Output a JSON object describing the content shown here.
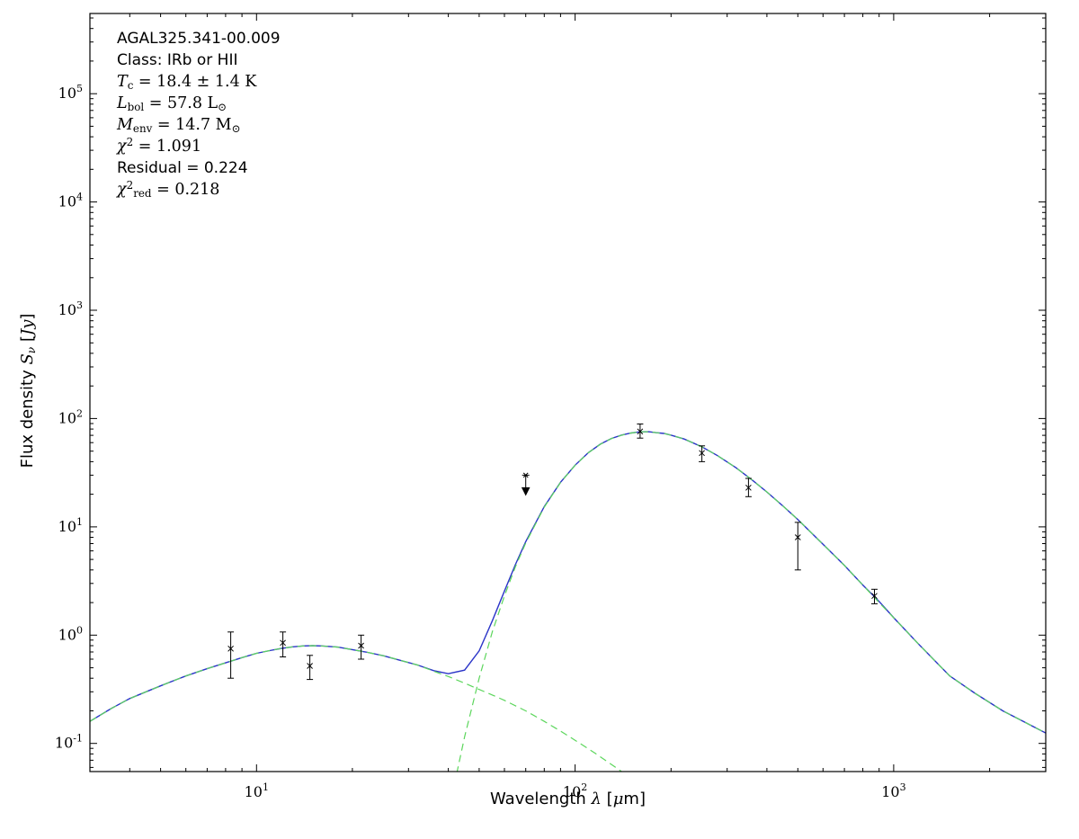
{
  "annotation": {
    "lines": [
      {
        "style": "plain",
        "text": "AGAL325.341-00.009"
      },
      {
        "style": "plain",
        "text": "Class: IRb or HII"
      },
      {
        "style": "math",
        "text": "T_{c} = 18.4 ± 1.4 K"
      },
      {
        "style": "math",
        "text": "L_{bol} = 57.8 L_{⊙}"
      },
      {
        "style": "math",
        "text": "M_{env} = 14.7 M_{⊙}"
      },
      {
        "style": "math",
        "text": "χ^{2} = 1.091"
      },
      {
        "style": "plain",
        "text": "Residual = 0.224"
      },
      {
        "style": "math",
        "text": "χ^{2}_{red} = 0.218"
      }
    ]
  },
  "chart_data": {
    "type": "line",
    "xlabel": "Wavelength *λ* [*μ*m]",
    "ylabel": "Flux density *S*_{*ν*} [*Jy*]",
    "xscale": "log",
    "yscale": "log",
    "xlim": [
      3,
      3000
    ],
    "ylim": [
      0.055,
      550000
    ],
    "grid": false,
    "x_ticks": [
      {
        "value": 10,
        "label": "10^{1}"
      },
      {
        "value": 100,
        "label": "10^{2}"
      },
      {
        "value": 1000,
        "label": "10^{3}"
      }
    ],
    "y_ticks": [
      {
        "value": 0.1,
        "label": "10^{-1}"
      },
      {
        "value": 1,
        "label": "10^{0}"
      },
      {
        "value": 10,
        "label": "10^{1}"
      },
      {
        "value": 100,
        "label": "10^{2}"
      },
      {
        "value": 1000,
        "label": "10^{3}"
      },
      {
        "value": 10000,
        "label": "10^{4}"
      },
      {
        "value": 100000,
        "label": "10^{5}"
      }
    ],
    "colors": {
      "total": "#2b35c8",
      "component": "#5cd65c",
      "data": "#000000"
    },
    "series": [
      {
        "name": "model-total",
        "style": "solid",
        "points": [
          [
            3,
            0.16
          ],
          [
            3.5,
            0.21
          ],
          [
            4,
            0.26
          ],
          [
            4.5,
            0.3
          ],
          [
            5,
            0.34
          ],
          [
            5.5,
            0.38
          ],
          [
            6,
            0.42
          ],
          [
            7,
            0.49
          ],
          [
            8,
            0.555
          ],
          [
            9,
            0.62
          ],
          [
            10,
            0.68
          ],
          [
            11,
            0.72
          ],
          [
            12,
            0.755
          ],
          [
            13,
            0.78
          ],
          [
            14,
            0.795
          ],
          [
            15,
            0.8
          ],
          [
            16,
            0.795
          ],
          [
            18,
            0.775
          ],
          [
            20,
            0.735
          ],
          [
            22,
            0.7
          ],
          [
            25,
            0.645
          ],
          [
            28,
            0.59
          ],
          [
            32,
            0.53
          ],
          [
            36,
            0.47
          ],
          [
            40,
            0.44
          ],
          [
            45,
            0.475
          ],
          [
            50,
            0.715
          ],
          [
            55,
            1.36
          ],
          [
            60,
            2.55
          ],
          [
            65,
            4.5
          ],
          [
            70,
            7.3
          ],
          [
            80,
            15.4
          ],
          [
            90,
            25.8
          ],
          [
            100,
            37.1
          ],
          [
            110,
            48.4
          ],
          [
            120,
            58
          ],
          [
            130,
            65.5
          ],
          [
            140,
            70.4
          ],
          [
            150,
            73.5
          ],
          [
            160,
            75.4
          ],
          [
            170,
            75.5
          ],
          [
            180,
            74
          ],
          [
            190,
            72.8
          ],
          [
            200,
            70.3
          ],
          [
            220,
            64.7
          ],
          [
            250,
            54.8
          ],
          [
            280,
            45.4
          ],
          [
            320,
            35.1
          ],
          [
            360,
            27
          ],
          [
            400,
            21
          ],
          [
            450,
            15.5
          ],
          [
            500,
            11.7
          ],
          [
            600,
            6.9
          ],
          [
            700,
            4.4
          ],
          [
            800,
            2.9
          ],
          [
            900,
            2.05
          ],
          [
            1000,
            1.45
          ],
          [
            1200,
            0.82
          ],
          [
            1500,
            0.42
          ],
          [
            1800,
            0.29
          ],
          [
            2200,
            0.2
          ],
          [
            2600,
            0.155
          ],
          [
            3000,
            0.125
          ]
        ]
      },
      {
        "name": "warm-component",
        "style": "dashed",
        "points": [
          [
            3,
            0.16
          ],
          [
            3.5,
            0.21
          ],
          [
            4,
            0.26
          ],
          [
            4.5,
            0.3
          ],
          [
            5,
            0.34
          ],
          [
            5.5,
            0.38
          ],
          [
            6,
            0.42
          ],
          [
            7,
            0.49
          ],
          [
            8,
            0.555
          ],
          [
            9,
            0.62
          ],
          [
            10,
            0.68
          ],
          [
            11,
            0.72
          ],
          [
            12,
            0.755
          ],
          [
            13,
            0.78
          ],
          [
            14,
            0.795
          ],
          [
            15,
            0.8
          ],
          [
            16,
            0.795
          ],
          [
            18,
            0.775
          ],
          [
            20,
            0.735
          ],
          [
            22,
            0.7
          ],
          [
            25,
            0.645
          ],
          [
            28,
            0.59
          ],
          [
            32,
            0.53
          ],
          [
            36,
            0.465
          ],
          [
            40,
            0.415
          ],
          [
            45,
            0.36
          ],
          [
            50,
            0.315
          ],
          [
            55,
            0.28
          ],
          [
            60,
            0.25
          ],
          [
            70,
            0.2
          ],
          [
            80,
            0.16
          ],
          [
            90,
            0.13
          ],
          [
            100,
            0.107
          ],
          [
            115,
            0.082
          ],
          [
            130,
            0.064
          ],
          [
            145,
            0.051
          ],
          [
            160,
            0.042
          ],
          [
            180,
            0.032
          ],
          [
            200,
            0.025
          ]
        ]
      },
      {
        "name": "cold-component",
        "style": "dashed",
        "points": [
          [
            36,
            0.01
          ],
          [
            40,
            0.023
          ],
          [
            45,
            0.115
          ],
          [
            50,
            0.4
          ],
          [
            55,
            1.08
          ],
          [
            60,
            2.3
          ],
          [
            65,
            4.3
          ],
          [
            70,
            7.1
          ],
          [
            80,
            15.2
          ],
          [
            90,
            25.7
          ],
          [
            100,
            37
          ],
          [
            110,
            48.3
          ],
          [
            120,
            57.9
          ],
          [
            130,
            65.4
          ],
          [
            140,
            70.3
          ],
          [
            150,
            73.5
          ],
          [
            160,
            75.4
          ],
          [
            170,
            75.5
          ],
          [
            180,
            74
          ],
          [
            190,
            72.8
          ],
          [
            200,
            70.3
          ],
          [
            220,
            64.7
          ],
          [
            250,
            54.8
          ],
          [
            280,
            45.4
          ],
          [
            320,
            35.1
          ],
          [
            360,
            27
          ],
          [
            400,
            21
          ],
          [
            450,
            15.5
          ],
          [
            500,
            11.7
          ],
          [
            600,
            6.9
          ],
          [
            700,
            4.4
          ],
          [
            800,
            2.9
          ],
          [
            900,
            2.0
          ],
          [
            1000,
            1.45
          ],
          [
            1200,
            0.82
          ],
          [
            1500,
            0.42
          ],
          [
            1800,
            0.29
          ],
          [
            2200,
            0.2
          ],
          [
            2600,
            0.155
          ],
          [
            3000,
            0.125
          ]
        ]
      }
    ],
    "points": [
      {
        "wavelength": 8.3,
        "flux": 0.75,
        "err_lo": 0.35,
        "err_hi": 0.32
      },
      {
        "wavelength": 12.1,
        "flux": 0.85,
        "err_lo": 0.22,
        "err_hi": 0.22
      },
      {
        "wavelength": 14.7,
        "flux": 0.52,
        "err_lo": 0.13,
        "err_hi": 0.13
      },
      {
        "wavelength": 21.3,
        "flux": 0.8,
        "err_lo": 0.2,
        "err_hi": 0.2
      },
      {
        "wavelength": 70,
        "flux": 30,
        "upper_limit": true
      },
      {
        "wavelength": 160,
        "flux": 76,
        "err_lo": 10,
        "err_hi": 13
      },
      {
        "wavelength": 250,
        "flux": 48,
        "err_lo": 8,
        "err_hi": 8
      },
      {
        "wavelength": 350,
        "flux": 23,
        "err_lo": 4,
        "err_hi": 5
      },
      {
        "wavelength": 500,
        "flux": 8,
        "err_lo": 4,
        "err_hi": 3
      },
      {
        "wavelength": 870,
        "flux": 2.3,
        "err_lo": 0.35,
        "err_hi": 0.35
      }
    ]
  }
}
